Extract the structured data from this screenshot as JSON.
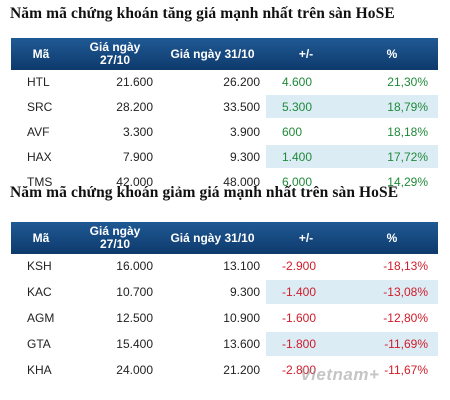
{
  "gainers": {
    "title": "Năm mã chứng khoán tăng giá mạnh nhất trên sàn HoSE",
    "headers": [
      "Mã",
      "Giá ngày 27/10",
      "Giá ngày 31/10",
      "+/-",
      "%"
    ],
    "rows": [
      [
        "HTL",
        "21.600",
        "26.200",
        "4.600",
        "21,30%"
      ],
      [
        "SRC",
        "28.200",
        "33.500",
        "5.300",
        "18,79%"
      ],
      [
        "AVF",
        "3.300",
        "3.900",
        "600",
        "18,18%"
      ],
      [
        "HAX",
        "7.900",
        "9.300",
        "1.400",
        "17,72%"
      ],
      [
        "TMS",
        "42.000",
        "48.000",
        "6.000",
        "14,29%"
      ]
    ]
  },
  "losers": {
    "title": "Năm mã chứng khoán giảm giá mạnh nhất trên sàn HoSE",
    "headers": [
      "Mã",
      "Giá ngày 27/10",
      "Giá ngày 31/10",
      "+/-",
      "%"
    ],
    "rows": [
      [
        "KSH",
        "16.000",
        "13.100",
        "-2.900",
        "-18,13%"
      ],
      [
        "KAC",
        "10.700",
        "9.300",
        "-1.400",
        "-13,08%"
      ],
      [
        "AGM",
        "12.500",
        "10.900",
        "-1.600",
        "-12,80%"
      ],
      [
        "GTA",
        "15.400",
        "13.600",
        "-1.800",
        "-11,69%"
      ],
      [
        "KHA",
        "24.000",
        "21.200",
        "-2.800",
        "-11,67%"
      ]
    ]
  },
  "watermark": "Vietnam+",
  "colors": {
    "header_bg": "#1a4f88",
    "row_tint": "#dcecf5",
    "positive": "#1f8a3a",
    "negative": "#cf1c2a"
  }
}
